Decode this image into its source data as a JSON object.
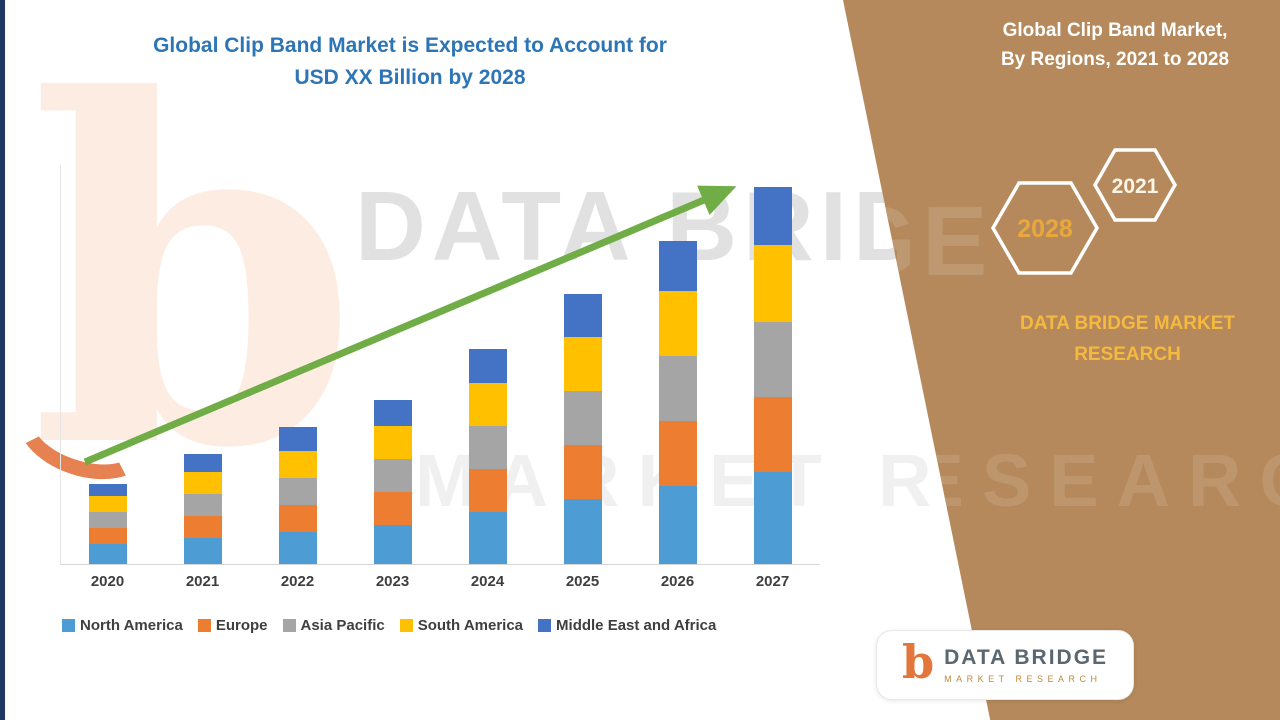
{
  "header": {
    "title_line1": "Global Clip Band Market is Expected to Account for",
    "title_line2": "USD XX Billion by 2028",
    "title_color": "#2E75B6"
  },
  "watermark": {
    "line1": "DATA BRIDGE",
    "line2": "MARKET RESEARCH",
    "logo_letter": "b"
  },
  "chart_data": {
    "type": "bar",
    "stacked": true,
    "title": "Global Clip Band Market is Expected to Account for USD XX Billion by 2028",
    "categories": [
      "2020",
      "2021",
      "2022",
      "2023",
      "2024",
      "2025",
      "2026",
      "2027"
    ],
    "series": [
      {
        "name": "North America",
        "color": "#4E9CD4",
        "values": [
          2.0,
          2.6,
          3.2,
          3.9,
          5.2,
          6.5,
          7.8,
          9.2
        ]
      },
      {
        "name": "Europe",
        "color": "#ED7D31",
        "values": [
          1.6,
          2.2,
          2.7,
          3.3,
          4.3,
          5.4,
          6.5,
          7.5
        ]
      },
      {
        "name": "Asia Pacific",
        "color": "#A5A5A5",
        "values": [
          1.6,
          2.2,
          2.7,
          3.3,
          4.3,
          5.4,
          6.5,
          7.5
        ]
      },
      {
        "name": "South America",
        "color": "#FFC000",
        "values": [
          1.6,
          2.2,
          2.7,
          3.3,
          4.3,
          5.4,
          6.5,
          7.7
        ]
      },
      {
        "name": "Middle East and Africa",
        "color": "#4472C4",
        "values": [
          1.2,
          1.8,
          2.4,
          2.6,
          3.4,
          4.3,
          5.0,
          5.8
        ]
      }
    ],
    "xlabel": "",
    "ylabel": "",
    "ylim": [
      0,
      40
    ],
    "grid": false,
    "legend_position": "bottom",
    "trend_arrow": true,
    "trend_arrow_color": "#70AD47"
  },
  "sidebar": {
    "background_color": "#B5895B",
    "title_line1": "Global Clip Band Market,",
    "title_line2": "By Regions, 2021 to 2028",
    "hexagon_back": {
      "label": "2028",
      "text_color": "#E9A83C"
    },
    "hexagon_front": {
      "label": "2021",
      "text_color": "#FDF6E8"
    },
    "brand_line1": "DATA BRIDGE MARKET",
    "brand_line2": "RESEARCH",
    "brand_color": "#F6B93F"
  },
  "logo_card": {
    "logo_letter": "b",
    "brand": "DATA BRIDGE",
    "tagline": "MARKET RESEARCH"
  }
}
